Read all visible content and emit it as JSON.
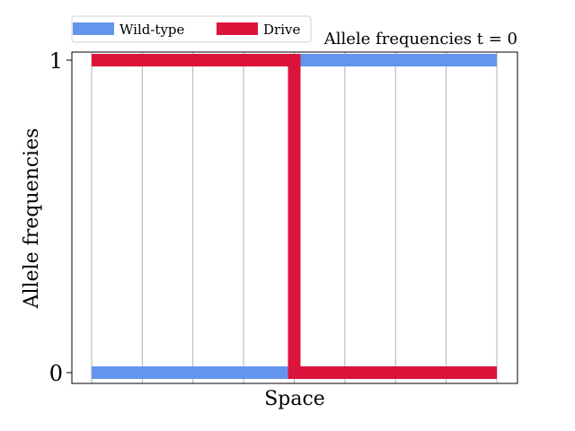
{
  "chart_data": {
    "type": "line",
    "title": "Allele frequencies t = 0",
    "xlabel": "Space",
    "ylabel": "Allele frequencies",
    "xlim": [
      0,
      1
    ],
    "ylim": [
      0,
      1
    ],
    "yticks": [
      0,
      1
    ],
    "ytick_labels": [
      "0",
      "1"
    ],
    "x_gridlines": 9,
    "grid": "vertical",
    "legend_position": "top-left",
    "series": [
      {
        "name": "Wild-type",
        "color": "#6495ed",
        "x": [
          0,
          0.5,
          0.5,
          1
        ],
        "y": [
          0,
          0,
          1,
          1
        ]
      },
      {
        "name": "Drive",
        "color": "#dc143c",
        "x": [
          0,
          0.5,
          0.5,
          1
        ],
        "y": [
          1,
          1,
          0,
          0
        ]
      }
    ]
  }
}
